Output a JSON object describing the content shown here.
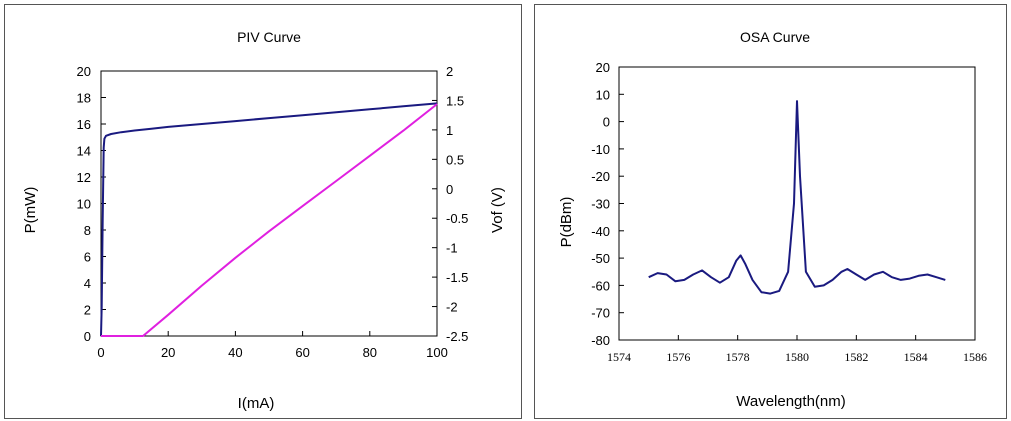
{
  "chart_data": [
    {
      "type": "line",
      "title": "PIV Curve",
      "xlabel": "I(mA)",
      "ylabel": "P(mW)",
      "y2label": "Vof (V)",
      "xlim": [
        0,
        100
      ],
      "ylim": [
        0,
        20
      ],
      "y2lim": [
        -2.5,
        2
      ],
      "xticks": [
        "0",
        "20",
        "40",
        "60",
        "80",
        "100"
      ],
      "yticks": [
        "0",
        "2",
        "4",
        "6",
        "8",
        "10",
        "12",
        "14",
        "16",
        "18",
        "20"
      ],
      "y2ticks": [
        "-2.5",
        "-2",
        "-1.5",
        "-1",
        "-0.5",
        "0",
        "0.5",
        "1",
        "1.5",
        "2"
      ],
      "grid": false,
      "legend": "none",
      "series": [
        {
          "axis": "y2",
          "color": "#1a1a80",
          "x": [
            0,
            0.2,
            0.5,
            0.8,
            1.0,
            1.5,
            3,
            6,
            10,
            15,
            20,
            30,
            40,
            50,
            60,
            70,
            80,
            90,
            100
          ],
          "values": [
            -2.5,
            -2.0,
            -0.5,
            0.7,
            0.85,
            0.9,
            0.93,
            0.96,
            0.99,
            1.02,
            1.05,
            1.1,
            1.15,
            1.2,
            1.25,
            1.3,
            1.35,
            1.4,
            1.45
          ]
        },
        {
          "axis": "y",
          "color": "#e020e0",
          "x": [
            0,
            12.5,
            20,
            30,
            40,
            50,
            60,
            70,
            80,
            90,
            100
          ],
          "values": [
            0,
            0,
            1.6,
            3.8,
            5.9,
            7.9,
            9.8,
            11.7,
            13.6,
            15.5,
            17.5
          ]
        }
      ]
    },
    {
      "type": "line",
      "title": "OSA Curve",
      "xlabel": "Wavelength(nm)",
      "ylabel": "P(dBm)",
      "xlim": [
        1574,
        1586
      ],
      "ylim": [
        -80,
        20
      ],
      "xticks": [
        "1574",
        "1576",
        "1578",
        "1580",
        "1582",
        "1584",
        "1586"
      ],
      "yticks": [
        "-80",
        "-70",
        "-60",
        "-50",
        "-40",
        "-30",
        "-20",
        "-10",
        "0",
        "10",
        "20"
      ],
      "grid": false,
      "legend": "none",
      "series": [
        {
          "color": "#1a1a80",
          "x": [
            1575.0,
            1575.3,
            1575.6,
            1575.9,
            1576.2,
            1576.5,
            1576.8,
            1577.1,
            1577.4,
            1577.7,
            1577.95,
            1578.1,
            1578.25,
            1578.5,
            1578.8,
            1579.1,
            1579.4,
            1579.7,
            1579.9,
            1580.0,
            1580.1,
            1580.3,
            1580.6,
            1580.9,
            1581.2,
            1581.5,
            1581.7,
            1582.0,
            1582.3,
            1582.6,
            1582.9,
            1583.2,
            1583.5,
            1583.8,
            1584.1,
            1584.4,
            1584.7,
            1585.0
          ],
          "values": [
            -57,
            -55.5,
            -56,
            -58.5,
            -58,
            -56,
            -54.5,
            -57,
            -59,
            -57,
            -51,
            -49,
            -52,
            -58,
            -62.5,
            -63,
            -62,
            -55,
            -30,
            7.5,
            -20,
            -55,
            -60.5,
            -60,
            -58,
            -55,
            -54,
            -56,
            -58,
            -56,
            -55,
            -57,
            -58,
            -57.5,
            -56.5,
            -56,
            -57,
            -58
          ]
        }
      ]
    }
  ]
}
